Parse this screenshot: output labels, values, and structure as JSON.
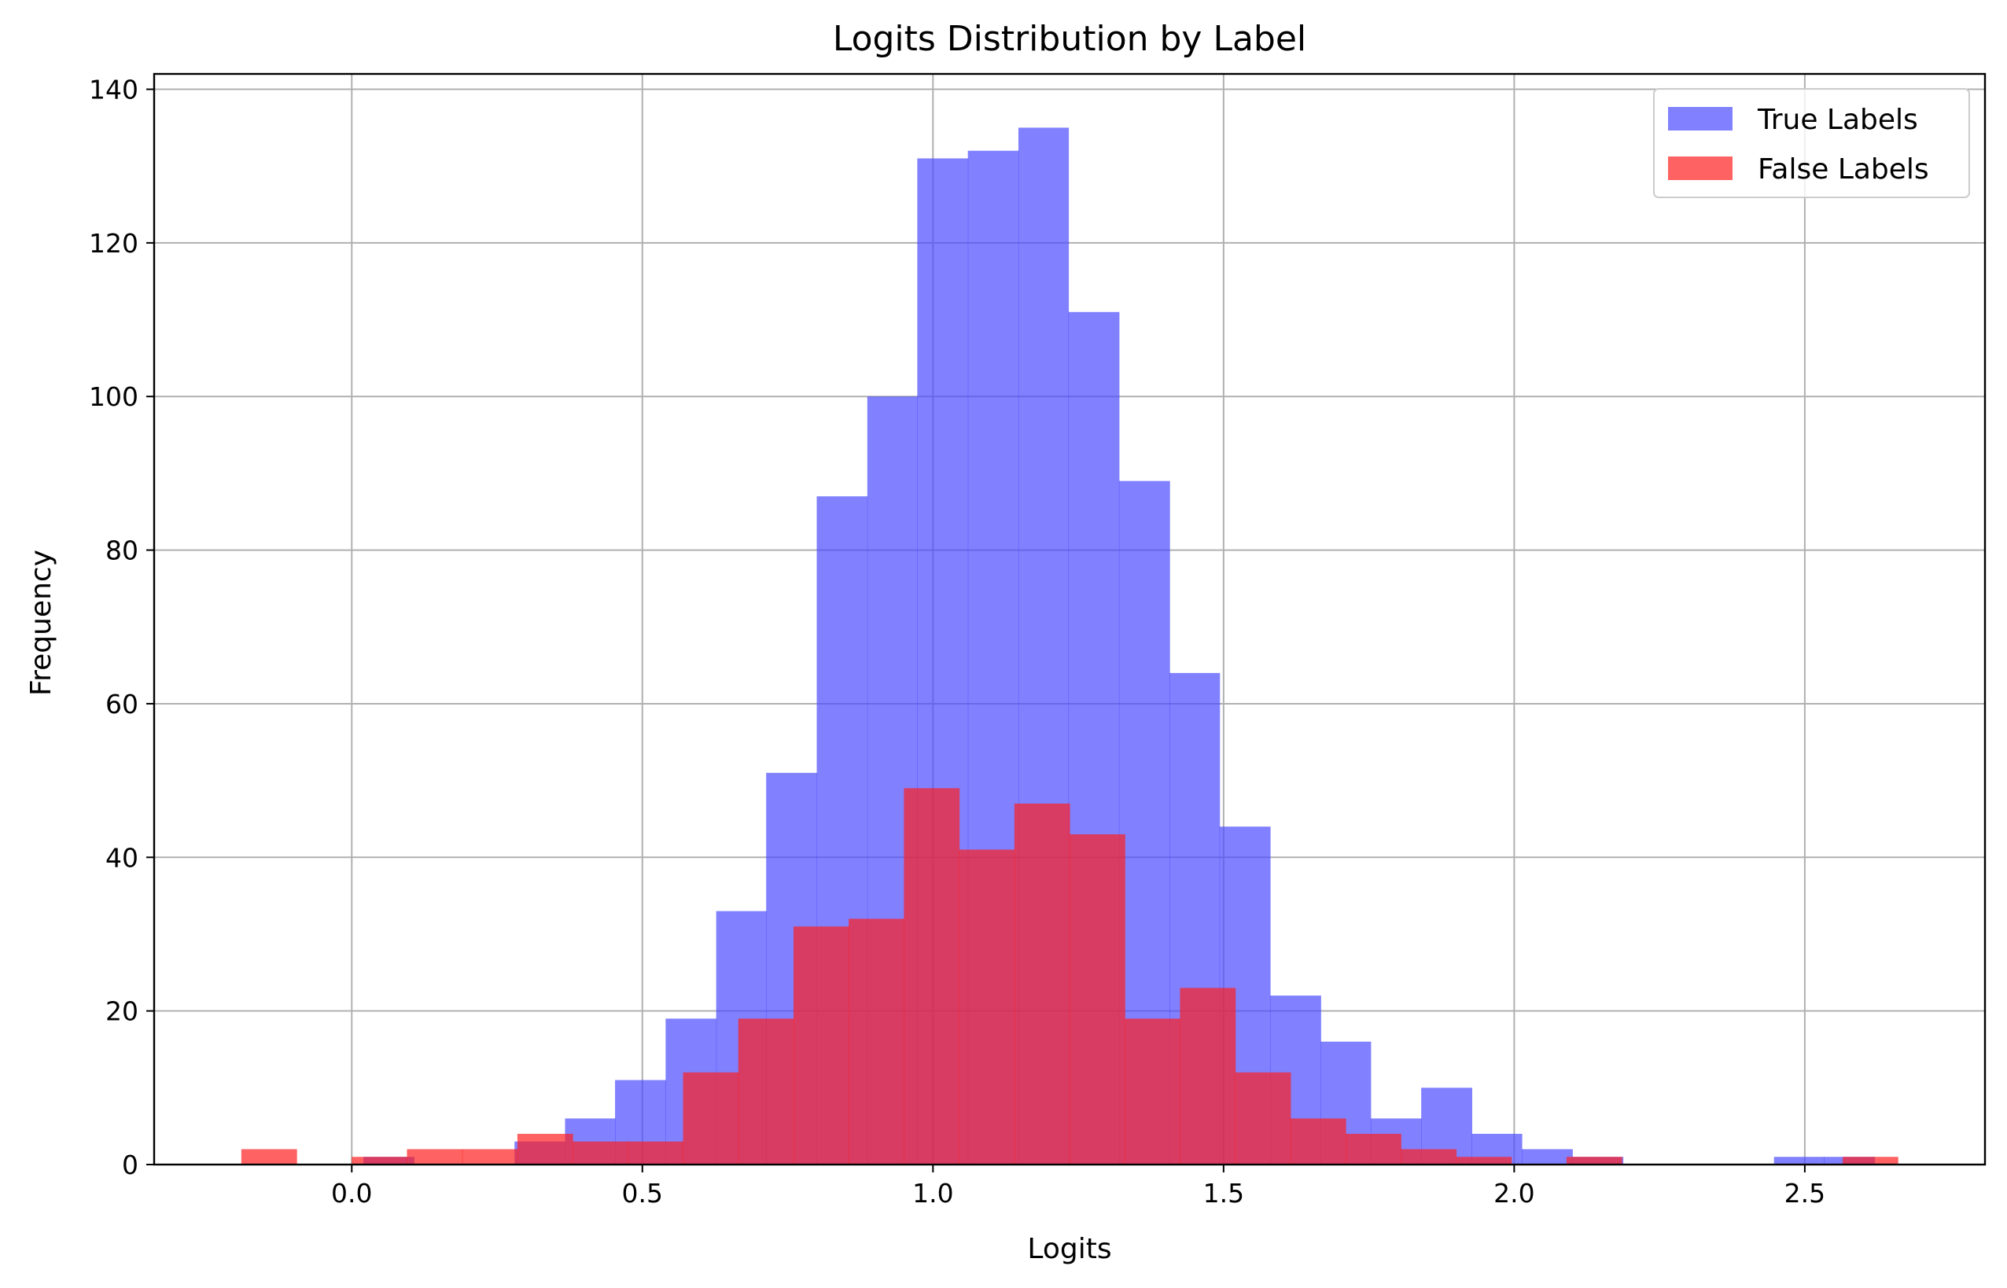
{
  "chart_data": {
    "type": "bar",
    "subtype": "overlaid-histogram",
    "title": "Logits Distribution by Label",
    "xlabel": "Logits",
    "ylabel": "Frequency",
    "xlim": [
      -0.34,
      2.81
    ],
    "ylim": [
      0,
      142
    ],
    "xticks": [
      0.0,
      0.5,
      1.0,
      1.5,
      2.0,
      2.5
    ],
    "xtick_labels": [
      "0.0",
      "0.5",
      "1.0",
      "1.5",
      "2.0",
      "2.5"
    ],
    "yticks": [
      0,
      20,
      40,
      60,
      80,
      100,
      120,
      140
    ],
    "ytick_labels": [
      "0",
      "20",
      "40",
      "60",
      "80",
      "100",
      "120",
      "140"
    ],
    "grid": true,
    "legend": {
      "placement": "top-right",
      "entries": [
        "True Labels",
        "False Labels"
      ]
    },
    "series": [
      {
        "name": "True Labels",
        "color": "#4c4cff",
        "opacity": 0.7,
        "bins": [
          [
            0.02,
            0.107,
            1
          ],
          [
            0.107,
            0.193,
            0
          ],
          [
            0.193,
            0.28,
            0
          ],
          [
            0.28,
            0.367,
            3
          ],
          [
            0.367,
            0.453,
            6
          ],
          [
            0.453,
            0.54,
            11
          ],
          [
            0.54,
            0.627,
            19
          ],
          [
            0.627,
            0.713,
            33
          ],
          [
            0.713,
            0.8,
            51
          ],
          [
            0.8,
            0.887,
            87
          ],
          [
            0.887,
            0.973,
            100
          ],
          [
            0.973,
            1.06,
            131
          ],
          [
            1.06,
            1.147,
            132
          ],
          [
            1.147,
            1.233,
            135
          ],
          [
            1.233,
            1.32,
            111
          ],
          [
            1.32,
            1.407,
            89
          ],
          [
            1.407,
            1.493,
            64
          ],
          [
            1.493,
            1.58,
            44
          ],
          [
            1.58,
            1.667,
            22
          ],
          [
            1.667,
            1.753,
            16
          ],
          [
            1.753,
            1.84,
            6
          ],
          [
            1.84,
            1.927,
            10
          ],
          [
            1.927,
            2.013,
            4
          ],
          [
            2.013,
            2.1,
            2
          ],
          [
            2.1,
            2.187,
            1
          ],
          [
            2.187,
            2.273,
            0
          ],
          [
            2.273,
            2.36,
            0
          ],
          [
            2.36,
            2.447,
            0
          ],
          [
            2.447,
            2.533,
            1
          ],
          [
            2.533,
            2.62,
            1
          ]
        ]
      },
      {
        "name": "False Labels",
        "color": "#ff2020",
        "opacity": 0.7,
        "bins": [
          [
            -0.19,
            -0.095,
            2
          ],
          [
            -0.095,
            0.0,
            0
          ],
          [
            0.0,
            0.095,
            1
          ],
          [
            0.095,
            0.19,
            2
          ],
          [
            0.19,
            0.285,
            2
          ],
          [
            0.285,
            0.38,
            4
          ],
          [
            0.38,
            0.475,
            3
          ],
          [
            0.475,
            0.57,
            3
          ],
          [
            0.57,
            0.665,
            12
          ],
          [
            0.665,
            0.76,
            19
          ],
          [
            0.76,
            0.855,
            31
          ],
          [
            0.855,
            0.95,
            32
          ],
          [
            0.95,
            1.045,
            49
          ],
          [
            1.045,
            1.14,
            41
          ],
          [
            1.14,
            1.235,
            47
          ],
          [
            1.235,
            1.33,
            43
          ],
          [
            1.33,
            1.425,
            19
          ],
          [
            1.425,
            1.52,
            23
          ],
          [
            1.52,
            1.615,
            12
          ],
          [
            1.615,
            1.71,
            6
          ],
          [
            1.71,
            1.805,
            4
          ],
          [
            1.805,
            1.9,
            2
          ],
          [
            1.9,
            1.995,
            1
          ],
          [
            1.995,
            2.09,
            0
          ],
          [
            2.09,
            2.185,
            1
          ],
          [
            2.185,
            2.28,
            0
          ],
          [
            2.28,
            2.375,
            0
          ],
          [
            2.375,
            2.47,
            0
          ],
          [
            2.47,
            2.565,
            0
          ],
          [
            2.565,
            2.66,
            1
          ]
        ]
      }
    ]
  }
}
